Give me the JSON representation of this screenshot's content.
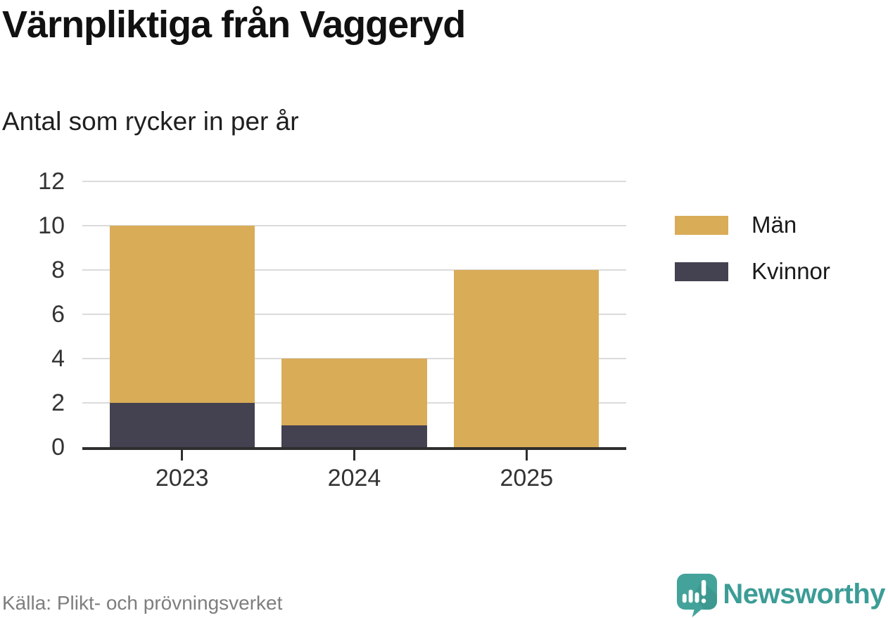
{
  "branding": {
    "name": "Newsworthy",
    "color": "#3C9C96",
    "icon": "newsworthy-speech-bubble-bar-chart-icon"
  },
  "chart_data": {
    "type": "bar",
    "stacked": true,
    "title": "Värnpliktiga från Vaggeryd",
    "subtitle": "Antal som rycker in per år",
    "source": "Källa: Plikt- och prövningsverket",
    "categories": [
      "2023",
      "2024",
      "2025"
    ],
    "series": [
      {
        "name": "Män",
        "color": "#D9AC58",
        "values": [
          8,
          3,
          8
        ]
      },
      {
        "name": "Kvinnor",
        "color": "#444150",
        "values": [
          2,
          1,
          0
        ]
      }
    ],
    "stack_note": "Kvinnor stacked at bottom, Män on top; stacked totals 10, 4, 8",
    "ylim": [
      0,
      12
    ],
    "yticks": [
      0,
      2,
      4,
      6,
      8,
      10,
      12
    ],
    "xlabel": "",
    "ylabel": "",
    "grid": "horizontal",
    "legend_position": "right",
    "axis_color": "#2E2E2E",
    "grid_color": "#DBDBDB",
    "tick_label_color": "#333333"
  }
}
